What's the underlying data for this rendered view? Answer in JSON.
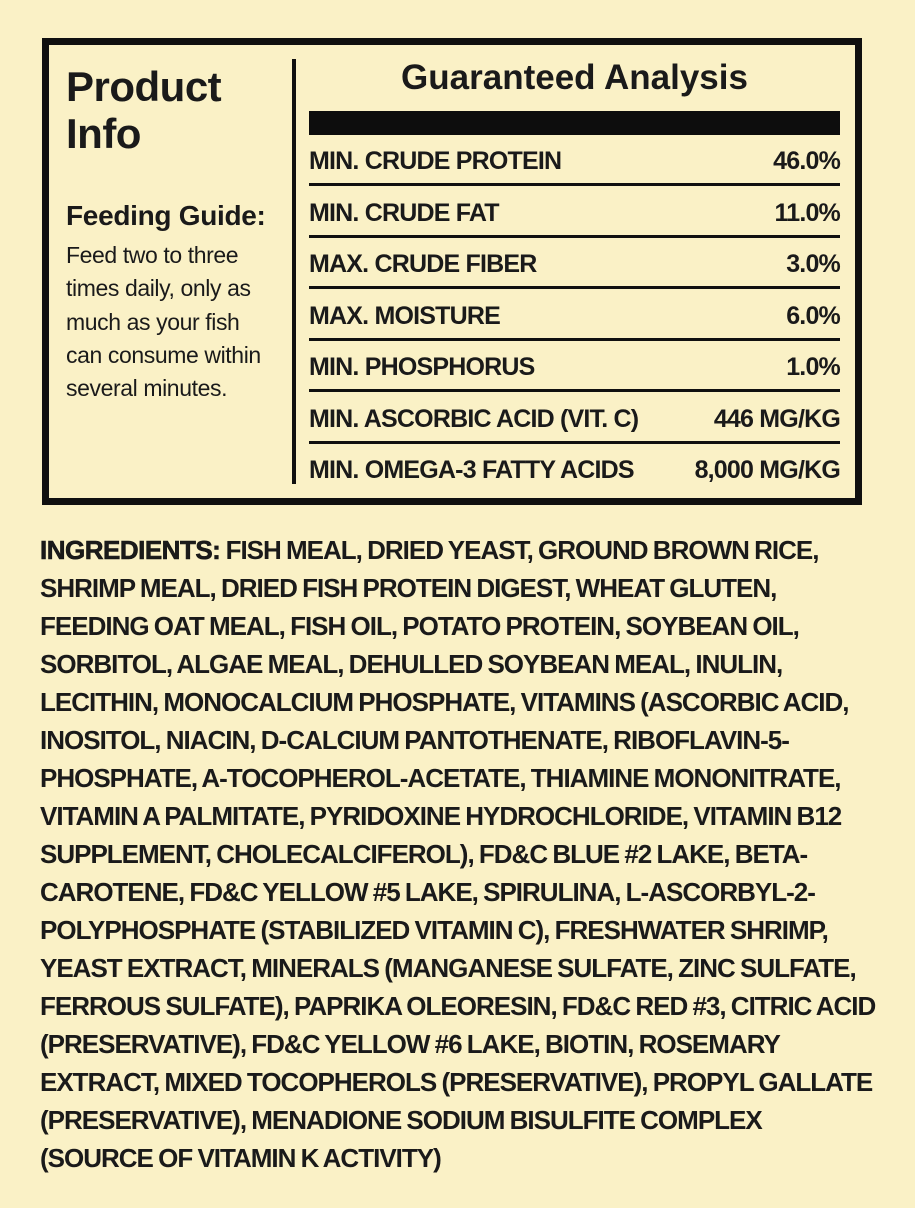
{
  "page": {
    "background_color": "#FAF1C6",
    "ink_color": "#1A1A1A",
    "border_color": "#101010"
  },
  "product_info": {
    "title": "Product Info",
    "feeding_guide_heading": "Feeding Guide:",
    "feeding_guide_text": "Feed two to three times daily, only as much as your fish can consume within several minutes."
  },
  "guaranteed_analysis": {
    "title": "Guaranteed Analysis",
    "rows": [
      {
        "label": "MIN. CRUDE PROTEIN",
        "value": "46.0%"
      },
      {
        "label": "MIN. CRUDE FAT",
        "value": "11.0%"
      },
      {
        "label": "MAX. CRUDE FIBER",
        "value": "3.0%"
      },
      {
        "label": "MAX. MOISTURE",
        "value": "6.0%"
      },
      {
        "label": "MIN. PHOSPHORUS",
        "value": "1.0%"
      },
      {
        "label": "MIN. ASCORBIC ACID (VIT. C)",
        "value": "446 MG/KG"
      },
      {
        "label": "MIN. OMEGA-3 FATTY ACIDS",
        "value": "8,000 MG/KG"
      }
    ]
  },
  "ingredients": {
    "label": "INGREDIENTS:",
    "text": " FISH MEAL, DRIED YEAST, GROUND BROWN RICE, SHRIMP MEAL, DRIED FISH PROTEIN DIGEST, WHEAT GLUTEN, FEEDING OAT MEAL, FISH OIL, POTATO PROTEIN, SOYBEAN OIL, SORBITOL, ALGAE MEAL, DEHULLED SOYBEAN MEAL, INULIN, LECITHIN, MONOCALCIUM PHOSPHATE, VITAMINS (ASCORBIC ACID, INOSITOL, NIACIN, D-CALCIUM PANTOTHENATE, RIBOFLAVIN-5-PHOSPHATE, A-TOCOPHEROL-ACETATE, THIAMINE MONONITRATE, VITAMIN A PALMITATE, PYRIDOXINE HYDROCHLORIDE, VITAMIN B12 SUPPLEMENT, CHOLECALCIFEROL), FD&C BLUE #2 LAKE, BETA-CAROTENE, FD&C YELLOW #5 LAKE, SPIRULINA, L-ASCORBYL-2-POLYPHOSPHATE (STABILIZED VITAMIN C), FRESHWATER SHRIMP, YEAST EXTRACT, MINERALS (MANGANESE SULFATE, ZINC SULFATE, FERROUS SULFATE), PAPRIKA OLEORESIN, FD&C RED #3, CITRIC ACID (PRESERVATIVE), FD&C YELLOW #6 LAKE, BIOTIN, ROSEMARY EXTRACT, MIXED TOCOPHEROLS (PRESERVATIVE), PROPYL GALLATE (PRESERVATIVE), MENADIONE SODIUM BISULFITE COMPLEX (SOURCE OF VITAMIN K ACTIVITY)"
  }
}
